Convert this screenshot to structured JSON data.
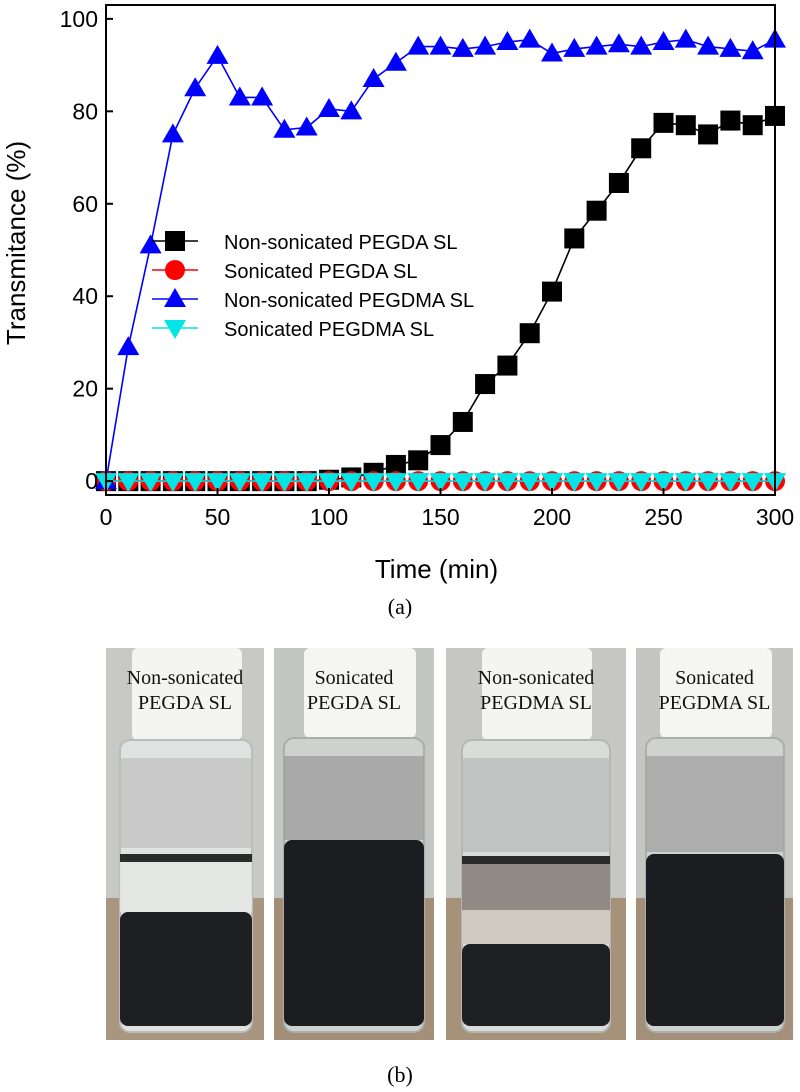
{
  "chart_data": {
    "type": "line",
    "xlabel": "Time (min)",
    "ylabel": "Transmitance (%)",
    "xlim": [
      0,
      300
    ],
    "ylim": [
      -3,
      103
    ],
    "xticks": [
      0,
      50,
      100,
      150,
      200,
      250,
      300
    ],
    "yticks": [
      0,
      20,
      40,
      60,
      80,
      100
    ],
    "legend_position": "center-left",
    "series": [
      {
        "name": "Non-sonicated PEGDA SL",
        "color": "#000000",
        "marker": "square",
        "x": [
          0,
          10,
          20,
          30,
          40,
          50,
          60,
          70,
          80,
          90,
          100,
          110,
          120,
          130,
          140,
          150,
          160,
          170,
          180,
          190,
          200,
          210,
          220,
          230,
          240,
          250,
          260,
          270,
          280,
          290,
          300
        ],
        "y": [
          0,
          0,
          0,
          0,
          0,
          0,
          0,
          0,
          0,
          0,
          0.3,
          0.8,
          1.8,
          3.5,
          4.5,
          7.8,
          12.8,
          21,
          25,
          32,
          41,
          52.5,
          58.5,
          64.5,
          72,
          77.5,
          77,
          75,
          78,
          77,
          79
        ]
      },
      {
        "name": "Sonicated PEGDA SL",
        "color": "#ff0000",
        "marker": "circle",
        "x": [
          0,
          10,
          20,
          30,
          40,
          50,
          60,
          70,
          80,
          90,
          100,
          110,
          120,
          130,
          140,
          150,
          160,
          170,
          180,
          190,
          200,
          210,
          220,
          230,
          240,
          250,
          260,
          270,
          280,
          290,
          300
        ],
        "y": [
          0,
          0,
          0,
          0,
          0,
          0,
          0,
          0,
          0,
          0,
          0,
          0,
          0,
          0,
          0,
          0,
          0,
          0,
          0,
          0,
          0,
          0,
          0,
          0,
          0,
          0,
          0,
          0,
          0,
          0,
          0
        ]
      },
      {
        "name": "Non-sonicated PEGDMA SL",
        "color": "#0000ff",
        "marker": "triangle-up",
        "x": [
          0,
          10,
          20,
          30,
          40,
          50,
          60,
          70,
          80,
          90,
          100,
          110,
          120,
          130,
          140,
          150,
          160,
          170,
          180,
          190,
          200,
          210,
          220,
          230,
          240,
          250,
          260,
          270,
          280,
          290,
          300
        ],
        "y": [
          0,
          29,
          51,
          75,
          85,
          92,
          83,
          83,
          76,
          76.5,
          80.5,
          80,
          87,
          90.5,
          94,
          94,
          93.5,
          94,
          95,
          95.5,
          92.5,
          93.5,
          94,
          94.5,
          94,
          95,
          95.5,
          94,
          93.5,
          93,
          95.5
        ]
      },
      {
        "name": "Sonicated PEGDMA SL",
        "color": "#00e5e5",
        "marker": "triangle-down",
        "x": [
          0,
          10,
          20,
          30,
          40,
          50,
          60,
          70,
          80,
          90,
          100,
          110,
          120,
          130,
          140,
          150,
          160,
          170,
          180,
          190,
          200,
          210,
          220,
          230,
          240,
          250,
          260,
          270,
          280,
          290,
          300
        ],
        "y": [
          0,
          0,
          0,
          0,
          0,
          0,
          0,
          0,
          0,
          0,
          0,
          0,
          0,
          0,
          0,
          0,
          0,
          0,
          0,
          0,
          0,
          0,
          0,
          0,
          0,
          0,
          0,
          0,
          0,
          0,
          0
        ]
      }
    ]
  },
  "captions": {
    "a": "(a)",
    "b": "(b)"
  },
  "vials": [
    {
      "line1": "Non-sonicated",
      "line2": "PEGDA SL"
    },
    {
      "line1": "Sonicated",
      "line2": "PEGDA SL"
    },
    {
      "line1": "Non-sonicated",
      "line2": "PEGDMA SL"
    },
    {
      "line1": "Sonicated",
      "line2": "PEGDMA SL"
    }
  ]
}
